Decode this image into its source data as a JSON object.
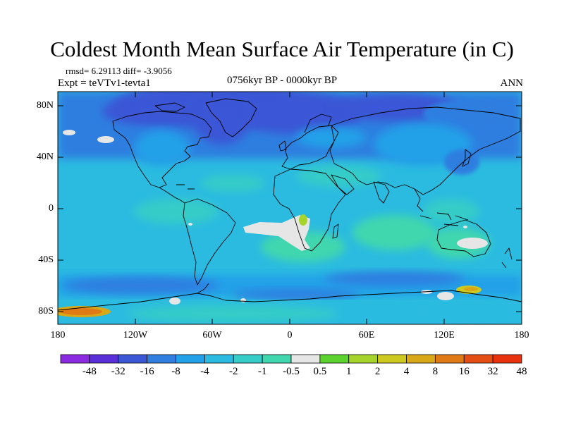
{
  "title": "Coldest Month Mean Surface Air Temperature (in C)",
  "stats": "rmsd= 6.29113 diff= -3.9056",
  "experiment": "Expt = teVTv1-tevta1",
  "period": "0756kyr BP - 0000kyr BP",
  "season": "ANN",
  "axes": {
    "y_labels": [
      "80N",
      "40N",
      "0",
      "40S",
      "80S"
    ],
    "x_labels": [
      "180",
      "120W",
      "60W",
      "0",
      "60E",
      "120E",
      "180"
    ]
  },
  "colorbar": {
    "colors": [
      "#8a2be2",
      "#5a2fd8",
      "#3b57d6",
      "#2f7ee0",
      "#22a0e8",
      "#2bbbe0",
      "#36ccc8",
      "#40d7ae",
      "#e6e6e6",
      "#5bd22e",
      "#a6d42a",
      "#cdc91f",
      "#d9a817",
      "#e07a15",
      "#e54e12",
      "#e8320e"
    ],
    "labels": [
      "-48",
      "-32",
      "-16",
      "-8",
      "-4",
      "-2",
      "-1",
      "-0.5",
      "0.5",
      "1",
      "2",
      "4",
      "8",
      "16",
      "32",
      "48"
    ]
  }
}
